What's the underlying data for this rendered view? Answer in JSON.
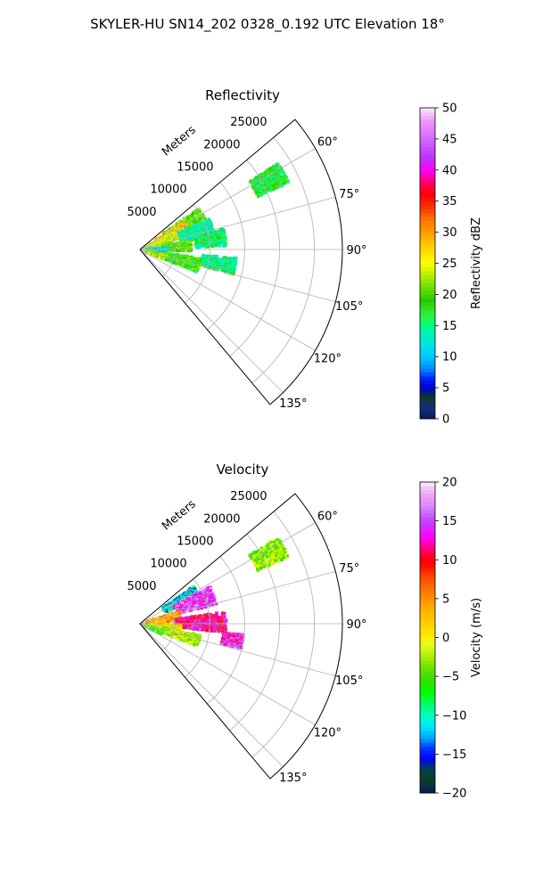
{
  "figure": {
    "suptitle": "SKYLER-HU  SN14_202  0328_0.192 UTC Elevation 18°"
  },
  "chart_data": [
    {
      "type": "heatmap",
      "title": "Reflectivity",
      "radial_label": "Meters",
      "r_ticks": [
        "5000",
        "10000",
        "15000",
        "20000",
        "25000"
      ],
      "r_tick_values": [
        5000,
        10000,
        15000,
        20000,
        25000
      ],
      "r_max": 29000,
      "theta_range_deg": [
        50,
        140
      ],
      "theta_ticks": [
        "60°",
        "75°",
        "90°",
        "105°",
        "120°",
        "135°"
      ],
      "theta_tick_values": [
        60,
        75,
        90,
        105,
        120,
        135
      ],
      "grid": true,
      "colorbar": {
        "label": "Reflectivity dBZ",
        "min": 0,
        "max": 50,
        "ticks": [
          "0",
          "5",
          "10",
          "15",
          "20",
          "25",
          "30",
          "35",
          "40",
          "45",
          "50"
        ],
        "tick_values": [
          0,
          5,
          10,
          15,
          20,
          25,
          30,
          35,
          40,
          45,
          50
        ]
      },
      "echo_regions": [
        {
          "az": [
            58,
            66
          ],
          "range": [
            18500,
            23500
          ],
          "value": 17
        },
        {
          "az": [
            55,
            70
          ],
          "range": [
            4000,
            10500
          ],
          "value": 20
        },
        {
          "az": [
            58,
            64
          ],
          "range": [
            2500,
            7500
          ],
          "value": 28
        },
        {
          "az": [
            62,
            75
          ],
          "range": [
            1500,
            6000
          ],
          "value": 25
        },
        {
          "az": [
            66,
            80
          ],
          "range": [
            6000,
            11000
          ],
          "value": 14
        },
        {
          "az": [
            68,
            82
          ],
          "range": [
            500,
            4500
          ],
          "value": 24
        },
        {
          "az": [
            76,
            88
          ],
          "range": [
            8000,
            12500
          ],
          "value": 16
        },
        {
          "az": [
            80,
            92
          ],
          "range": [
            3500,
            7500
          ],
          "value": 20
        },
        {
          "az": [
            86,
            96
          ],
          "range": [
            1000,
            4000
          ],
          "value": 12
        },
        {
          "az": [
            95,
            105
          ],
          "range": [
            9000,
            14000
          ],
          "value": 15
        },
        {
          "az": [
            98,
            112
          ],
          "range": [
            3500,
            9000
          ],
          "value": 19
        },
        {
          "az": [
            100,
            112
          ],
          "range": [
            1000,
            4000
          ],
          "value": 22
        }
      ]
    },
    {
      "type": "heatmap",
      "title": "Velocity",
      "radial_label": "Meters",
      "r_ticks": [
        "5000",
        "10000",
        "15000",
        "20000",
        "25000"
      ],
      "r_tick_values": [
        5000,
        10000,
        15000,
        20000,
        25000
      ],
      "r_max": 29000,
      "theta_range_deg": [
        50,
        140
      ],
      "theta_ticks": [
        "60°",
        "75°",
        "90°",
        "105°",
        "120°",
        "135°"
      ],
      "theta_tick_values": [
        60,
        75,
        90,
        105,
        120,
        135
      ],
      "grid": true,
      "colorbar": {
        "label": "Velocity (m/s)",
        "min": -20,
        "max": 20,
        "ticks": [
          "−20",
          "−15",
          "−10",
          "−5",
          "0",
          "5",
          "10",
          "15",
          "20"
        ],
        "tick_values": [
          -20,
          -15,
          -10,
          -5,
          0,
          5,
          10,
          15,
          20
        ]
      },
      "echo_regions": [
        {
          "az": [
            58,
            66
          ],
          "range": [
            18500,
            23500
          ],
          "value": -3
        },
        {
          "az": [
            55,
            66
          ],
          "range": [
            4000,
            9500
          ],
          "value": -11
        },
        {
          "az": [
            62,
            76
          ],
          "range": [
            5500,
            11500
          ],
          "value": 15
        },
        {
          "az": [
            72,
            86
          ],
          "range": [
            1000,
            6000
          ],
          "value": 4
        },
        {
          "az": [
            82,
            96
          ],
          "range": [
            5000,
            12500
          ],
          "value": 11
        },
        {
          "az": [
            88,
            96
          ],
          "range": [
            7500,
            11000
          ],
          "value": 13
        },
        {
          "az": [
            96,
            104
          ],
          "range": [
            12000,
            15000
          ],
          "value": 14
        },
        {
          "az": [
            92,
            104
          ],
          "range": [
            1500,
            6000
          ],
          "value": 1
        },
        {
          "az": [
            100,
            112
          ],
          "range": [
            2000,
            9000
          ],
          "value": -2
        },
        {
          "az": [
            106,
            116
          ],
          "range": [
            500,
            3500
          ],
          "value": -5
        }
      ]
    }
  ]
}
